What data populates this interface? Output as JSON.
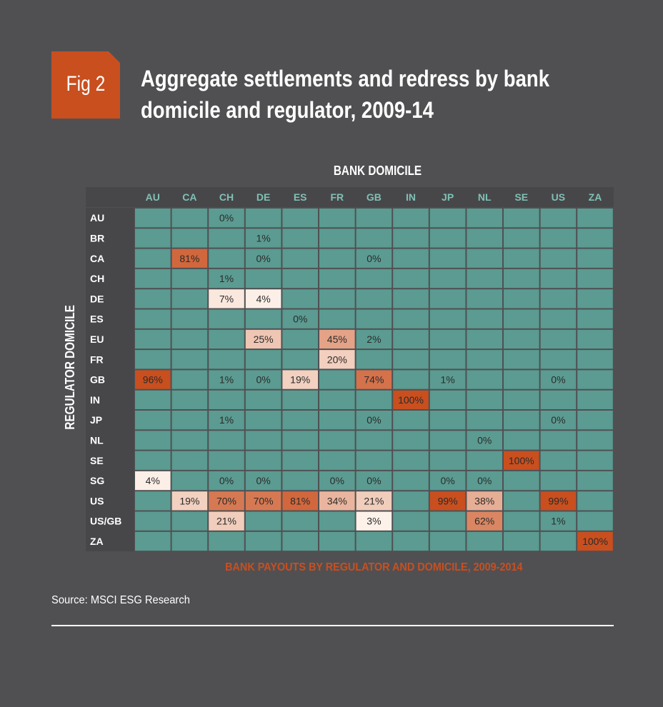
{
  "figure": {
    "badge": "Fig 2",
    "title_line1": "Aggregate settlements and redress by bank",
    "title_line2": "domicile and regulator, 2009-14",
    "source": "Source: MSCI ESG Research"
  },
  "colors": {
    "background": "#505053",
    "accent": "#c94f1f",
    "cell_default": "#5b9b91",
    "header_bg": "#47474a",
    "header_text": "#7fc1b5"
  },
  "chart_data": {
    "type": "heatmap",
    "title": "BANK PAYOUTS BY REGULATOR AND DOMICILE, 2009-2014",
    "xlabel": "BANK DOMICILE",
    "ylabel": "REGULATOR DOMICILE",
    "columns": [
      "AU",
      "CA",
      "CH",
      "DE",
      "ES",
      "FR",
      "GB",
      "IN",
      "JP",
      "NL",
      "SE",
      "US",
      "ZA"
    ],
    "rows": [
      "AU",
      "BR",
      "CA",
      "CH",
      "DE",
      "ES",
      "EU",
      "FR",
      "GB",
      "IN",
      "JP",
      "NL",
      "SE",
      "SG",
      "US",
      "US/GB",
      "ZA"
    ],
    "unit": "%",
    "cells": [
      {
        "row": "AU",
        "col": "CH",
        "value": 0
      },
      {
        "row": "BR",
        "col": "DE",
        "value": 1
      },
      {
        "row": "CA",
        "col": "CA",
        "value": 81
      },
      {
        "row": "CA",
        "col": "DE",
        "value": 0
      },
      {
        "row": "CA",
        "col": "GB",
        "value": 0
      },
      {
        "row": "CH",
        "col": "CH",
        "value": 1
      },
      {
        "row": "DE",
        "col": "CH",
        "value": 7
      },
      {
        "row": "DE",
        "col": "DE",
        "value": 4
      },
      {
        "row": "ES",
        "col": "ES",
        "value": 0
      },
      {
        "row": "EU",
        "col": "DE",
        "value": 25
      },
      {
        "row": "EU",
        "col": "FR",
        "value": 45
      },
      {
        "row": "EU",
        "col": "GB",
        "value": 2
      },
      {
        "row": "FR",
        "col": "FR",
        "value": 20
      },
      {
        "row": "GB",
        "col": "AU",
        "value": 96
      },
      {
        "row": "GB",
        "col": "CH",
        "value": 1
      },
      {
        "row": "GB",
        "col": "DE",
        "value": 0
      },
      {
        "row": "GB",
        "col": "ES",
        "value": 19
      },
      {
        "row": "GB",
        "col": "GB",
        "value": 74
      },
      {
        "row": "GB",
        "col": "JP",
        "value": 1
      },
      {
        "row": "GB",
        "col": "US",
        "value": 0
      },
      {
        "row": "IN",
        "col": "IN",
        "value": 100
      },
      {
        "row": "JP",
        "col": "CH",
        "value": 1
      },
      {
        "row": "JP",
        "col": "GB",
        "value": 0
      },
      {
        "row": "JP",
        "col": "US",
        "value": 0
      },
      {
        "row": "NL",
        "col": "NL",
        "value": 0
      },
      {
        "row": "SE",
        "col": "SE",
        "value": 100
      },
      {
        "row": "SG",
        "col": "AU",
        "value": 4
      },
      {
        "row": "SG",
        "col": "CH",
        "value": 0
      },
      {
        "row": "SG",
        "col": "DE",
        "value": 0
      },
      {
        "row": "SG",
        "col": "FR",
        "value": 0
      },
      {
        "row": "SG",
        "col": "GB",
        "value": 0
      },
      {
        "row": "SG",
        "col": "JP",
        "value": 0
      },
      {
        "row": "SG",
        "col": "NL",
        "value": 0
      },
      {
        "row": "US",
        "col": "CA",
        "value": 19
      },
      {
        "row": "US",
        "col": "CH",
        "value": 70
      },
      {
        "row": "US",
        "col": "DE",
        "value": 70
      },
      {
        "row": "US",
        "col": "ES",
        "value": 81
      },
      {
        "row": "US",
        "col": "FR",
        "value": 34
      },
      {
        "row": "US",
        "col": "GB",
        "value": 21
      },
      {
        "row": "US",
        "col": "JP",
        "value": 99
      },
      {
        "row": "US",
        "col": "NL",
        "value": 38
      },
      {
        "row": "US",
        "col": "US",
        "value": 99
      },
      {
        "row": "US/GB",
        "col": "CH",
        "value": 21
      },
      {
        "row": "US/GB",
        "col": "GB",
        "value": 3
      },
      {
        "row": "US/GB",
        "col": "NL",
        "value": 62
      },
      {
        "row": "US/GB",
        "col": "US",
        "value": 1
      },
      {
        "row": "ZA",
        "col": "ZA",
        "value": 100
      }
    ]
  }
}
